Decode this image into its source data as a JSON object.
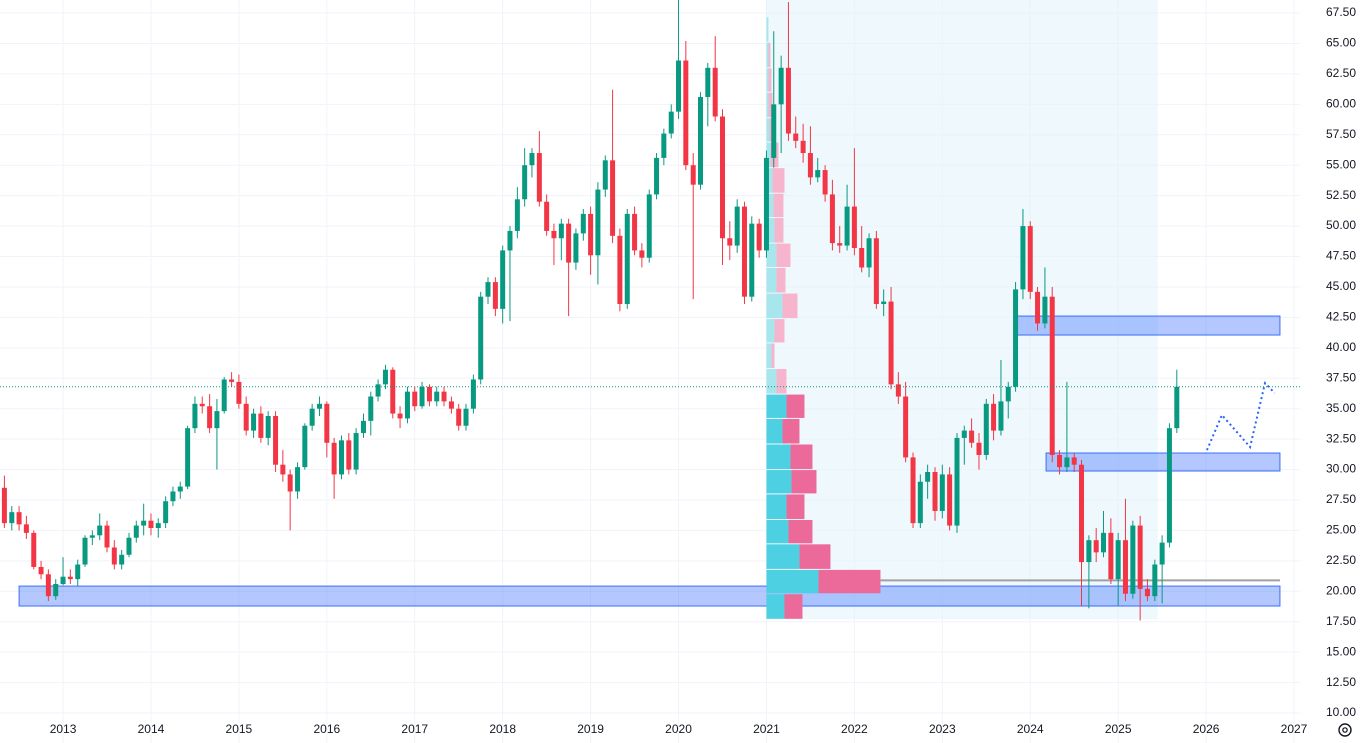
{
  "chart_data": {
    "type": "candlestick",
    "xlim": [
      2012.283,
      2027.068
    ],
    "ylim": [
      7.54,
      68.57
    ],
    "xticks": [
      2013,
      2014,
      2015,
      2016,
      2017,
      2018,
      2019,
      2020,
      2021,
      2022,
      2023,
      2024,
      2025,
      2026,
      2027
    ],
    "yticks": [
      {
        "value": 10,
        "label": "10.00"
      },
      {
        "value": 12.5,
        "label": "12.50"
      },
      {
        "value": 15,
        "label": "15.00"
      },
      {
        "value": 17.5,
        "label": "17.50"
      },
      {
        "value": 20,
        "label": "20.00"
      },
      {
        "value": 22.5,
        "label": "22.50"
      },
      {
        "value": 25,
        "label": "25.00"
      },
      {
        "value": 27.5,
        "label": "27.50"
      },
      {
        "value": 30,
        "label": "30.00"
      },
      {
        "value": 32.5,
        "label": "32.50"
      },
      {
        "value": 35,
        "label": "35.00"
      },
      {
        "value": 37.5,
        "label": "37.50"
      },
      {
        "value": 40,
        "label": "40.00"
      },
      {
        "value": 42.5,
        "label": "42.50"
      },
      {
        "value": 45,
        "label": "45.00"
      },
      {
        "value": 47.5,
        "label": "47.50"
      },
      {
        "value": 50,
        "label": "50.00"
      },
      {
        "value": 52.5,
        "label": "52.50"
      },
      {
        "value": 55,
        "label": "55.00"
      },
      {
        "value": 57.5,
        "label": "57.50"
      },
      {
        "value": 60,
        "label": "60.00"
      },
      {
        "value": 62.5,
        "label": "62.50"
      },
      {
        "value": 65,
        "label": "65.00"
      },
      {
        "value": 67.5,
        "label": "67.50"
      }
    ],
    "grid": true,
    "up_color": "#089981",
    "down_color": "#f23645",
    "x": [
      2012.333,
      2012.417,
      2012.5,
      2012.583,
      2012.667,
      2012.75,
      2012.833,
      2012.917,
      2013,
      2013.083,
      2013.167,
      2013.25,
      2013.333,
      2013.417,
      2013.5,
      2013.583,
      2013.667,
      2013.75,
      2013.833,
      2013.917,
      2014,
      2014.083,
      2014.167,
      2014.25,
      2014.333,
      2014.417,
      2014.5,
      2014.583,
      2014.667,
      2014.75,
      2014.833,
      2014.917,
      2015,
      2015.083,
      2015.167,
      2015.25,
      2015.333,
      2015.417,
      2015.5,
      2015.583,
      2015.667,
      2015.75,
      2015.833,
      2015.917,
      2016,
      2016.083,
      2016.167,
      2016.25,
      2016.333,
      2016.417,
      2016.5,
      2016.583,
      2016.667,
      2016.75,
      2016.833,
      2016.917,
      2017,
      2017.083,
      2017.167,
      2017.25,
      2017.333,
      2017.417,
      2017.5,
      2017.583,
      2017.667,
      2017.75,
      2017.833,
      2017.917,
      2018,
      2018.083,
      2018.167,
      2018.25,
      2018.333,
      2018.417,
      2018.5,
      2018.583,
      2018.667,
      2018.75,
      2018.833,
      2018.917,
      2019,
      2019.083,
      2019.167,
      2019.25,
      2019.333,
      2019.417,
      2019.5,
      2019.583,
      2019.667,
      2019.75,
      2019.833,
      2019.917,
      2020,
      2020.083,
      2020.167,
      2020.25,
      2020.333,
      2020.417,
      2020.5,
      2020.583,
      2020.667,
      2020.75,
      2020.833,
      2020.917,
      2021,
      2021.083,
      2021.167,
      2021.25,
      2021.333,
      2021.417,
      2021.5,
      2021.583,
      2021.667,
      2021.75,
      2021.833,
      2021.917,
      2022,
      2022.083,
      2022.167,
      2022.25,
      2022.333,
      2022.417,
      2022.5,
      2022.583,
      2022.667,
      2022.75,
      2022.833,
      2022.917,
      2023,
      2023.083,
      2023.167,
      2023.25,
      2023.333,
      2023.417,
      2023.5,
      2023.583,
      2023.667,
      2023.75,
      2023.833,
      2023.917,
      2024,
      2024.083,
      2024.167,
      2024.25,
      2024.333,
      2024.417,
      2024.5,
      2024.583,
      2024.667,
      2024.75,
      2024.833,
      2024.917,
      2025,
      2025.083,
      2025.167,
      2025.25,
      2025.333,
      2025.417,
      2025.5,
      2025.583,
      2025.667
    ],
    "open": [
      28.5,
      25.6,
      26.5,
      25.5,
      24.8,
      22.0,
      21.4,
      19.6,
      20.6,
      21.2,
      21.0,
      22.2,
      24.4,
      24.6,
      25.4,
      23.6,
      22.2,
      23.0,
      24.4,
      25.4,
      25.8,
      25.2,
      25.6,
      27.4,
      28.2,
      28.6,
      33.4,
      35.4,
      35.2,
      33.4,
      34.8,
      37.4,
      37.2,
      35.4,
      33.2,
      34.6,
      32.6,
      34.4,
      30.4,
      29.6,
      28.2,
      30.2,
      33.6,
      35.0,
      35.4,
      32.2,
      29.6,
      32.4,
      30.0,
      33.0,
      34.0,
      36.0,
      37.0,
      38.2,
      34.6,
      34.2,
      36.4,
      35.2,
      36.8,
      35.6,
      36.4,
      35.6,
      35.0,
      33.6,
      35.0,
      37.4,
      44.2,
      45.4,
      43.2,
      48.0,
      49.6,
      52.2,
      55.0,
      56.0,
      52.0,
      49.6,
      49.0,
      50.2,
      47.0,
      49.4,
      51.0,
      47.6,
      53.0,
      55.4,
      49.2,
      43.6,
      51.0,
      48.0,
      47.4,
      52.6,
      55.6,
      57.6,
      59.4,
      63.6,
      55.0,
      53.4,
      60.6,
      63.0,
      59.0,
      49.0,
      48.4,
      51.6,
      44.2,
      50.2,
      48.0,
      55.6,
      60.0,
      63.0,
      57.6,
      57.0,
      56.0,
      54.0,
      54.6,
      52.6,
      48.6,
      48.4,
      51.6,
      48.2,
      46.6,
      49.0,
      43.6,
      43.8,
      37.0,
      36.0,
      31.0,
      25.6,
      29.0,
      29.8,
      26.6,
      29.6,
      25.4,
      32.6,
      33.2,
      32.2,
      31.2,
      35.4,
      33.2,
      35.6,
      36.8,
      44.8,
      50.0,
      44.6,
      42.0,
      44.2,
      31.2,
      30.2,
      31.0,
      30.4,
      22.4,
      24.2,
      23.2,
      24.8,
      21.0,
      24.2,
      19.8,
      25.4,
      20.2,
      19.6,
      22.2,
      24.0,
      33.4
    ],
    "high": [
      29.5,
      27.0,
      27.0,
      26.2,
      25.0,
      22.5,
      21.8,
      21.0,
      22.8,
      21.8,
      22.6,
      24.6,
      25.0,
      26.4,
      25.8,
      24.2,
      23.4,
      24.8,
      25.8,
      27.2,
      26.4,
      26.0,
      27.8,
      28.6,
      29.0,
      33.6,
      36.0,
      36.0,
      36.2,
      35.8,
      37.6,
      38.0,
      37.8,
      36.0,
      35.0,
      35.2,
      34.8,
      34.8,
      31.6,
      30.0,
      30.6,
      33.8,
      35.4,
      36.0,
      35.6,
      32.6,
      32.8,
      33.0,
      33.4,
      34.6,
      36.4,
      37.4,
      38.6,
      38.4,
      35.2,
      36.8,
      36.8,
      37.2,
      37.0,
      36.8,
      36.8,
      36.0,
      35.4,
      35.4,
      37.8,
      44.6,
      45.8,
      45.8,
      48.4,
      50.0,
      53.2,
      56.4,
      56.4,
      57.8,
      52.6,
      50.2,
      50.6,
      50.6,
      49.8,
      51.4,
      51.6,
      53.6,
      55.8,
      61.2,
      49.8,
      51.4,
      51.6,
      48.6,
      53.0,
      56.0,
      58.0,
      60.0,
      68.6,
      65.2,
      56.0,
      61.0,
      63.4,
      65.6,
      59.6,
      50.4,
      52.2,
      52.0,
      50.8,
      50.6,
      56.2,
      66.0,
      64.0,
      68.4,
      59.0,
      58.4,
      58.2,
      55.6,
      55.0,
      53.8,
      50.0,
      53.4,
      56.4,
      50.0,
      49.4,
      49.6,
      44.8,
      45.0,
      38.0,
      37.2,
      31.4,
      29.6,
      30.4,
      30.2,
      30.4,
      30.2,
      33.0,
      33.6,
      34.2,
      33.0,
      35.8,
      36.2,
      39.0,
      37.2,
      45.4,
      51.4,
      50.4,
      45.0,
      46.6,
      45.0,
      31.6,
      37.2,
      31.4,
      30.8,
      24.6,
      25.2,
      26.6,
      26.0,
      24.8,
      27.6,
      25.8,
      26.2,
      21.0,
      22.6,
      24.6,
      33.8,
      38.2
    ],
    "low": [
      25.2,
      25.0,
      25.0,
      24.3,
      21.8,
      21.0,
      19.2,
      19.3,
      20.5,
      20.6,
      20.4,
      22.0,
      23.8,
      24.2,
      23.2,
      21.8,
      21.8,
      22.8,
      24.0,
      24.6,
      24.6,
      24.4,
      25.2,
      27.0,
      27.6,
      28.4,
      33.0,
      34.6,
      33.0,
      30.0,
      34.6,
      36.8,
      35.0,
      32.8,
      32.6,
      32.2,
      32.0,
      29.8,
      29.0,
      25.0,
      27.6,
      30.0,
      33.2,
      34.4,
      31.0,
      27.6,
      29.2,
      29.6,
      29.6,
      32.6,
      32.8,
      35.6,
      36.6,
      34.2,
      33.4,
      33.8,
      34.8,
      35.0,
      35.2,
      35.2,
      35.2,
      34.6,
      33.2,
      33.2,
      34.6,
      37.0,
      43.6,
      42.6,
      42.0,
      42.2,
      49.0,
      51.6,
      54.0,
      51.6,
      49.2,
      46.8,
      47.2,
      42.6,
      46.4,
      48.8,
      46.0,
      45.2,
      52.4,
      48.6,
      43.0,
      43.2,
      47.6,
      46.6,
      47.0,
      52.2,
      55.0,
      57.2,
      58.8,
      54.6,
      44.0,
      53.0,
      58.2,
      58.6,
      46.8,
      47.2,
      47.8,
      43.6,
      43.8,
      47.4,
      47.4,
      54.8,
      56.0,
      57.0,
      56.4,
      55.2,
      53.4,
      53.6,
      52.0,
      48.0,
      47.8,
      48.0,
      47.6,
      46.2,
      45.8,
      43.2,
      42.6,
      36.6,
      35.4,
      30.6,
      25.2,
      25.2,
      27.6,
      25.8,
      26.0,
      25.0,
      24.8,
      30.4,
      31.8,
      30.0,
      30.8,
      32.4,
      32.8,
      34.2,
      36.4,
      44.0,
      44.0,
      41.4,
      41.6,
      30.6,
      29.6,
      29.8,
      29.8,
      18.8,
      18.6,
      22.4,
      22.8,
      20.6,
      18.8,
      19.2,
      19.4,
      17.6,
      19.2,
      19.2,
      19.0,
      23.6,
      33.0
    ],
    "close": [
      25.6,
      26.5,
      25.5,
      24.8,
      22.0,
      21.4,
      19.6,
      20.6,
      21.2,
      21.0,
      22.2,
      24.4,
      24.6,
      25.4,
      23.6,
      22.2,
      23.0,
      24.4,
      25.4,
      25.8,
      25.2,
      25.6,
      27.4,
      28.2,
      28.6,
      33.4,
      35.4,
      35.2,
      33.4,
      34.8,
      37.4,
      37.2,
      35.4,
      33.2,
      34.6,
      32.6,
      34.4,
      30.4,
      29.6,
      28.2,
      30.2,
      33.6,
      35.0,
      35.4,
      32.2,
      29.6,
      32.4,
      30.0,
      33.0,
      34.0,
      36.0,
      37.0,
      38.2,
      34.6,
      34.2,
      36.4,
      35.2,
      36.8,
      35.6,
      36.4,
      35.6,
      35.0,
      33.6,
      35.0,
      37.4,
      44.2,
      45.4,
      43.2,
      48.0,
      49.6,
      52.2,
      55.0,
      56.0,
      52.0,
      49.6,
      49.0,
      50.2,
      47.0,
      49.4,
      51.0,
      47.6,
      53.0,
      55.4,
      49.2,
      43.6,
      51.0,
      48.0,
      47.4,
      52.6,
      55.6,
      57.6,
      59.4,
      63.6,
      55.0,
      53.4,
      60.6,
      63.0,
      59.0,
      49.0,
      48.4,
      51.6,
      44.2,
      50.2,
      48.0,
      55.6,
      60.0,
      63.0,
      57.6,
      57.0,
      56.0,
      54.0,
      54.6,
      52.6,
      48.6,
      48.4,
      51.6,
      48.2,
      46.6,
      49.0,
      43.6,
      43.8,
      37.0,
      36.0,
      31.0,
      25.6,
      29.0,
      29.8,
      26.6,
      29.6,
      25.4,
      32.6,
      33.2,
      32.2,
      31.2,
      35.4,
      33.2,
      35.6,
      36.8,
      44.8,
      50.0,
      44.6,
      42.0,
      44.2,
      31.2,
      30.2,
      31.0,
      30.4,
      22.4,
      24.2,
      23.2,
      24.8,
      21.0,
      24.2,
      19.8,
      25.4,
      20.2,
      19.6,
      22.2,
      24.0,
      33.4,
      36.8
    ],
    "last_price": 36.8,
    "last_price_color": "#089981",
    "profile": {
      "x": [
        2021.0,
        2025.45
      ],
      "levels": [
        17.7,
        19.8,
        21.8,
        23.9,
        25.9,
        28.0,
        30.0,
        32.1,
        34.2,
        36.2,
        38.3,
        40.4,
        42.4,
        44.5,
        46.6,
        48.6,
        50.7,
        52.7,
        54.8,
        56.9,
        58.9,
        61.0,
        63.0,
        65.1,
        67.2
      ],
      "up": [
        18,
        52,
        33,
        22,
        20,
        25,
        24,
        16,
        20,
        10,
        5,
        8,
        16,
        10,
        10,
        8,
        7,
        6,
        4,
        3,
        2,
        2,
        2,
        2
      ],
      "down": [
        18,
        62,
        31,
        24,
        18,
        25,
        22,
        17,
        18,
        10,
        3,
        10,
        15,
        9,
        14,
        9,
        10,
        12,
        8,
        6,
        4,
        3,
        2,
        0
      ],
      "value_area": [
        17.7,
        36.2
      ],
      "poc": 20.9,
      "colors": {
        "up": "#4dd0e1",
        "down": "#ec6a9a",
        "up_outside": "#a8e6ee",
        "down_outside": "#f6b5cd",
        "range": "#e3f4fb"
      }
    },
    "zones": [
      {
        "x": [
          2012.5,
          2026.84
        ],
        "y": [
          18.79,
          20.43
        ]
      },
      {
        "x": [
          2023.85,
          2026.84
        ],
        "y": [
          41.05,
          42.61
        ]
      },
      {
        "x": [
          2024.18,
          2026.84
        ],
        "y": [
          29.88,
          31.36
        ]
      }
    ],
    "zone_color": "#2962ff",
    "projection": {
      "x": [
        2026.01,
        2026.18,
        2026.5,
        2026.67,
        2026.78
      ],
      "y": [
        31.6,
        34.48,
        31.85,
        37.1,
        36.29
      ],
      "color": "#2962ff"
    }
  }
}
